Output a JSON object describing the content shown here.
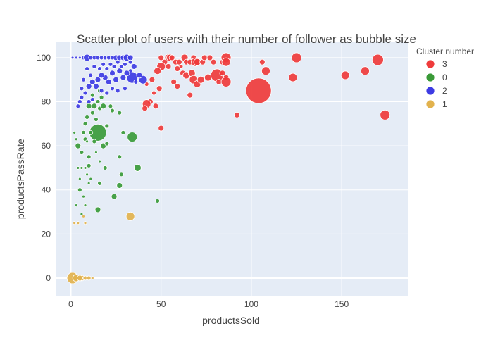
{
  "chart_data": {
    "type": "scatter",
    "title": "Scatter plot of users with their number of follower as bubble size",
    "xlabel": "productsSold",
    "ylabel": "productsPassRate",
    "xlim": [
      -8,
      187
    ],
    "ylim": [
      -8,
      107
    ],
    "x_ticks": [
      0,
      50,
      100,
      150
    ],
    "y_ticks": [
      0,
      20,
      40,
      60,
      80,
      100
    ],
    "grid": true,
    "legend": {
      "title": "Cluster number",
      "placement": "top-right",
      "items": [
        "3",
        "0",
        "2",
        "1"
      ]
    },
    "series": [
      {
        "name": "3",
        "color": "#EF3B3B",
        "points": [
          [
            50,
            100,
            4
          ],
          [
            52,
            98,
            4
          ],
          [
            54,
            100,
            5
          ],
          [
            55,
            100,
            5
          ],
          [
            56,
            100,
            4
          ],
          [
            58,
            98,
            4
          ],
          [
            60,
            98,
            4
          ],
          [
            61,
            96,
            3
          ],
          [
            63,
            100,
            5
          ],
          [
            64,
            98,
            4
          ],
          [
            66,
            98,
            4
          ],
          [
            68,
            100,
            4
          ],
          [
            69,
            98,
            6
          ],
          [
            70,
            98,
            5
          ],
          [
            73,
            98,
            4
          ],
          [
            74,
            100,
            4
          ],
          [
            77,
            100,
            4
          ],
          [
            79,
            98,
            4
          ],
          [
            84,
            98,
            4
          ],
          [
            86,
            100,
            7
          ],
          [
            86,
            98,
            6
          ],
          [
            106,
            98,
            4
          ],
          [
            125,
            100,
            7
          ],
          [
            170,
            99,
            8
          ],
          [
            50,
            96,
            6
          ],
          [
            48,
            94,
            5
          ],
          [
            54,
            96,
            4
          ],
          [
            59,
            95,
            4
          ],
          [
            62,
            93,
            4
          ],
          [
            64,
            92,
            5
          ],
          [
            67,
            93,
            5
          ],
          [
            68,
            90,
            6
          ],
          [
            70,
            88,
            5
          ],
          [
            72,
            90,
            5
          ],
          [
            76,
            91,
            5
          ],
          [
            81,
            92,
            9
          ],
          [
            82,
            89,
            4
          ],
          [
            84,
            93,
            4
          ],
          [
            86,
            91,
            4
          ],
          [
            86,
            89,
            7
          ],
          [
            108,
            94,
            6
          ],
          [
            123,
            91,
            6
          ],
          [
            152,
            92,
            6
          ],
          [
            163,
            94,
            6
          ],
          [
            174,
            74,
            7
          ],
          [
            104,
            85,
            18
          ],
          [
            92,
            74,
            4
          ],
          [
            66,
            83,
            4
          ],
          [
            59,
            87,
            4
          ],
          [
            57,
            89,
            4
          ],
          [
            49,
            86,
            4
          ],
          [
            47,
            78,
            4
          ],
          [
            44,
            80,
            4
          ],
          [
            42,
            79,
            6
          ],
          [
            41,
            77,
            4
          ],
          [
            50,
            68,
            4
          ],
          [
            45,
            90,
            4
          ],
          [
            46,
            84,
            3
          ],
          [
            42,
            88,
            3
          ]
        ]
      },
      {
        "name": "0",
        "color": "#3A9A38",
        "points": [
          [
            15,
            66,
            12
          ],
          [
            34,
            64,
            7
          ],
          [
            37,
            50,
            5
          ],
          [
            27,
            55,
            3
          ],
          [
            27,
            42,
            4
          ],
          [
            24,
            37,
            4
          ],
          [
            15,
            31,
            4
          ],
          [
            48,
            35,
            3
          ],
          [
            20,
            69,
            3
          ],
          [
            23,
            76,
            3
          ],
          [
            27,
            75,
            3
          ],
          [
            29,
            66,
            3
          ],
          [
            28,
            47,
            3
          ],
          [
            19,
            50,
            3
          ],
          [
            16,
            43,
            3
          ],
          [
            18,
            60,
            4
          ],
          [
            20,
            61,
            3
          ],
          [
            13,
            62,
            3
          ],
          [
            14,
            72,
            3
          ],
          [
            12,
            75,
            3
          ],
          [
            10,
            78,
            4
          ],
          [
            9,
            73,
            3
          ],
          [
            8,
            70,
            3
          ],
          [
            7,
            66,
            3
          ],
          [
            8,
            63,
            3
          ],
          [
            4,
            60,
            4
          ],
          [
            6,
            57,
            3
          ],
          [
            10,
            55,
            3
          ],
          [
            10,
            51,
            3
          ],
          [
            9,
            47,
            2
          ],
          [
            5,
            40,
            3
          ],
          [
            7,
            37,
            2
          ],
          [
            6,
            29,
            2
          ],
          [
            3,
            33,
            2
          ],
          [
            2,
            66,
            2
          ],
          [
            4,
            50,
            2
          ],
          [
            6,
            50,
            2
          ],
          [
            8,
            50,
            2
          ],
          [
            3,
            63,
            2
          ],
          [
            11,
            66,
            3
          ],
          [
            13,
            78,
            4
          ],
          [
            16,
            77,
            3
          ],
          [
            18,
            78,
            4
          ],
          [
            22,
            78,
            3
          ],
          [
            16,
            85,
            3
          ],
          [
            17,
            82,
            3
          ],
          [
            15,
            80,
            3
          ],
          [
            12,
            83,
            3
          ],
          [
            14,
            57,
            2
          ],
          [
            9,
            62,
            2
          ],
          [
            11,
            45,
            2
          ],
          [
            16,
            53,
            2
          ],
          [
            10,
            43,
            2
          ],
          [
            8,
            33,
            2
          ],
          [
            5,
            45,
            2
          ]
        ]
      },
      {
        "name": "2",
        "color": "#3D3BE3",
        "points": [
          [
            1,
            100,
            2
          ],
          [
            3,
            100,
            2
          ],
          [
            5,
            100,
            2
          ],
          [
            7,
            100,
            3
          ],
          [
            9,
            100,
            5
          ],
          [
            11,
            100,
            3
          ],
          [
            13,
            100,
            3
          ],
          [
            15,
            100,
            3
          ],
          [
            17,
            100,
            3
          ],
          [
            19,
            100,
            3
          ],
          [
            21,
            100,
            3
          ],
          [
            23,
            100,
            3
          ],
          [
            25,
            100,
            4
          ],
          [
            27,
            100,
            4
          ],
          [
            29,
            100,
            4
          ],
          [
            31,
            100,
            5
          ],
          [
            33,
            100,
            4
          ],
          [
            34,
            91,
            8
          ],
          [
            40,
            90,
            6
          ],
          [
            38,
            92,
            4
          ],
          [
            35,
            96,
            4
          ],
          [
            33,
            94,
            3
          ],
          [
            31,
            93,
            4
          ],
          [
            29,
            91,
            4
          ],
          [
            27,
            94,
            4
          ],
          [
            25,
            90,
            4
          ],
          [
            23,
            93,
            4
          ],
          [
            21,
            89,
            4
          ],
          [
            19,
            91,
            4
          ],
          [
            17,
            92,
            4
          ],
          [
            15,
            90,
            4
          ],
          [
            14,
            87,
            4
          ],
          [
            12,
            89,
            4
          ],
          [
            10,
            87,
            4
          ],
          [
            8,
            84,
            3
          ],
          [
            6,
            82,
            3
          ],
          [
            5,
            80,
            3
          ],
          [
            4,
            78,
            3
          ],
          [
            9,
            95,
            3
          ],
          [
            11,
            92,
            3
          ],
          [
            13,
            96,
            3
          ],
          [
            16,
            95,
            3
          ],
          [
            18,
            97,
            3
          ],
          [
            20,
            95,
            3
          ],
          [
            22,
            97,
            3
          ],
          [
            24,
            96,
            3
          ],
          [
            26,
            98,
            3
          ],
          [
            28,
            96,
            3
          ],
          [
            30,
            97,
            3
          ],
          [
            33,
            98,
            3
          ],
          [
            17,
            85,
            3
          ],
          [
            20,
            84,
            3
          ],
          [
            23,
            86,
            3
          ],
          [
            26,
            85,
            3
          ],
          [
            30,
            86,
            3
          ],
          [
            7,
            90,
            3
          ],
          [
            6,
            86,
            3
          ],
          [
            10,
            80,
            3
          ],
          [
            12,
            81,
            3
          ],
          [
            36,
            89,
            3
          ]
        ]
      },
      {
        "name": "1",
        "color": "#E2B24D",
        "points": [
          [
            1,
            0,
            8
          ],
          [
            3,
            0,
            5
          ],
          [
            6,
            0,
            4
          ],
          [
            8,
            0,
            3
          ],
          [
            10,
            0,
            3
          ],
          [
            5,
            0,
            4
          ],
          [
            2,
            25,
            2
          ],
          [
            4,
            25,
            2
          ],
          [
            8,
            25,
            2
          ],
          [
            7,
            28,
            2
          ],
          [
            33,
            28,
            6
          ],
          [
            12,
            0,
            2
          ]
        ]
      }
    ]
  }
}
